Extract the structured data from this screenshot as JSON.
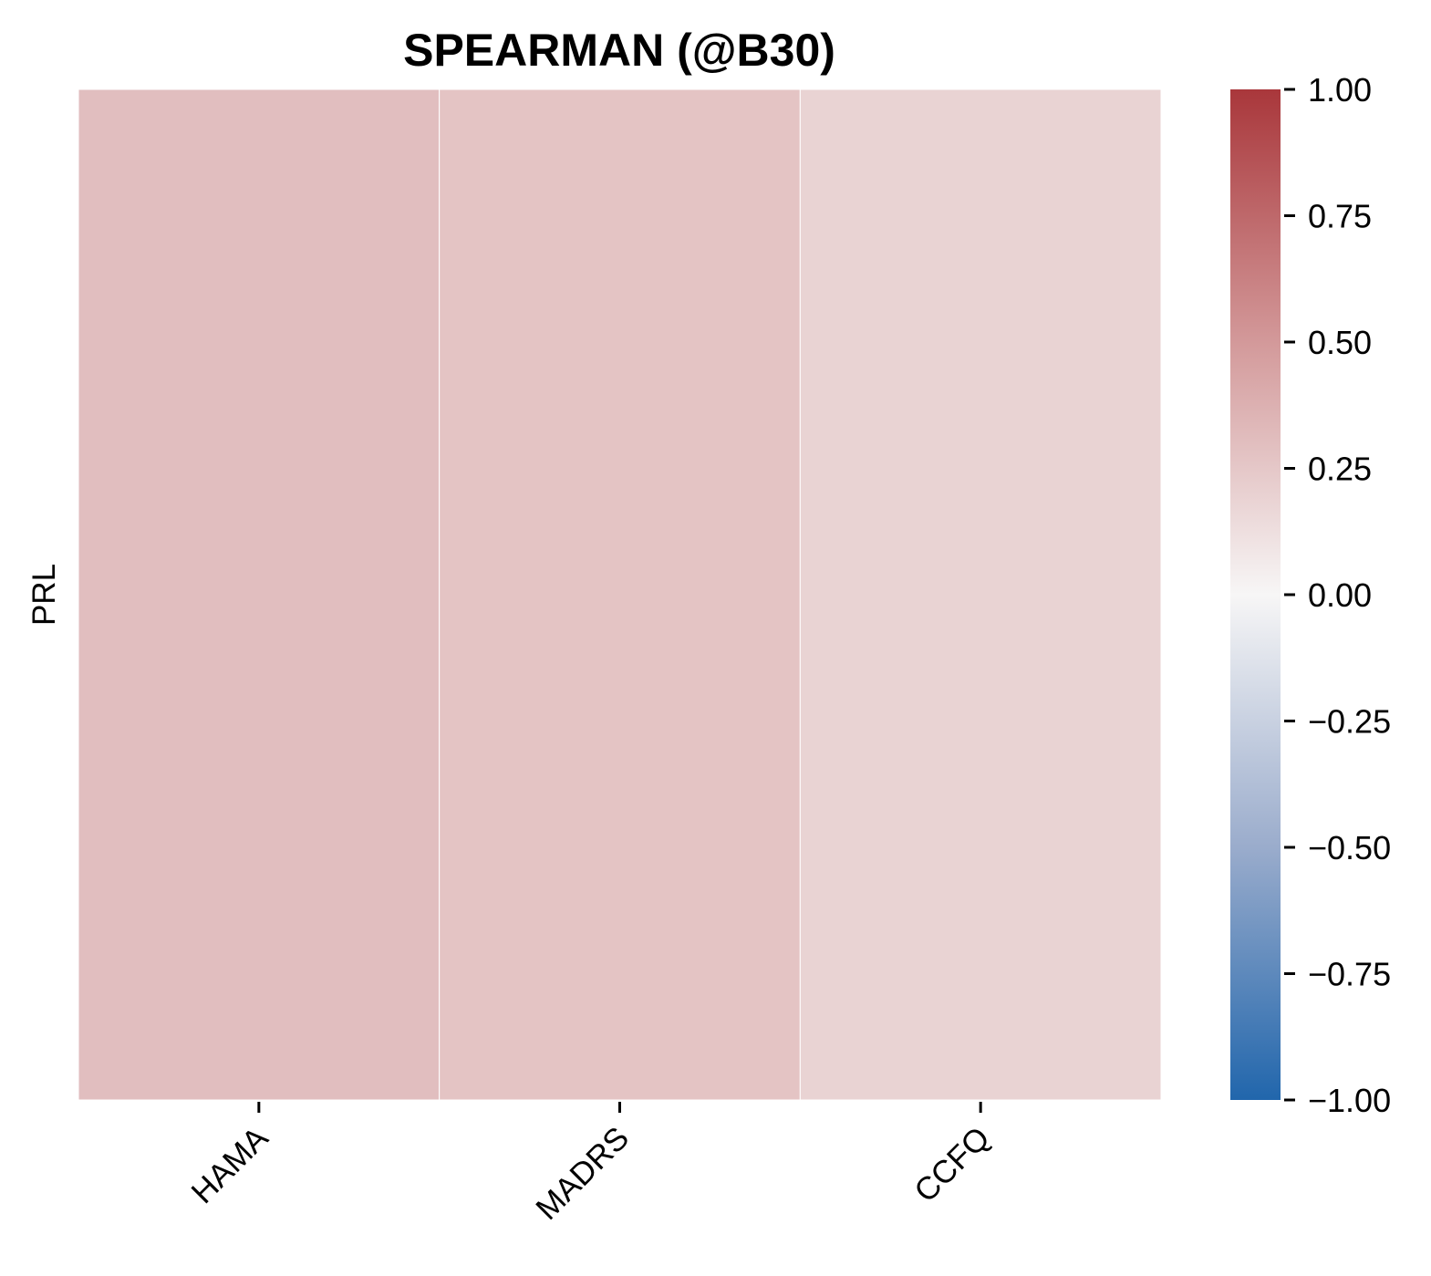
{
  "chart_data": {
    "type": "heatmap",
    "title": "SPEARMAN (@B30)",
    "xlabel": "",
    "ylabel": "",
    "x_categories": [
      "HAMA",
      "MADRS",
      "CCFQ"
    ],
    "y_categories": [
      "PRL"
    ],
    "values": [
      [
        0.3,
        0.27,
        0.19
      ]
    ],
    "vmin": -1.0,
    "vmax": 1.0,
    "colormap": "vlag",
    "colormap_stops": [
      {
        "value": -1.0,
        "color": "#2166ac"
      },
      {
        "value": -0.5,
        "color": "#9aaccc"
      },
      {
        "value": 0.0,
        "color": "#f7f6f6"
      },
      {
        "value": 0.5,
        "color": "#d3999a"
      },
      {
        "value": 1.0,
        "color": "#a9373b"
      }
    ],
    "colorbar_ticks": [
      "1.00",
      "0.75",
      "0.50",
      "0.25",
      "0.00",
      "−0.25",
      "−0.50",
      "−0.75",
      "−1.00"
    ],
    "colorbar_tick_values": [
      1.0,
      0.75,
      0.5,
      0.25,
      0.0,
      -0.25,
      -0.5,
      -0.75,
      -1.0
    ],
    "grid": false,
    "cell_separator_color": "#ffffff"
  }
}
